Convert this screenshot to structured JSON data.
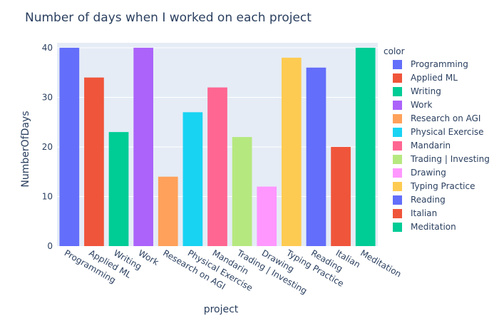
{
  "chart_data": {
    "type": "bar",
    "title": "Number of days when I worked on each project",
    "xlabel": "project",
    "ylabel": "NumberOfDays",
    "ylim": [
      0,
      41
    ],
    "yticks": [
      0,
      10,
      20,
      30,
      40
    ],
    "grid": true,
    "legend_title": "color",
    "legend_position": "right",
    "categories": [
      "Programming",
      "Applied ML",
      "Writing",
      "Work",
      "Research on AGI",
      "Physical Exercise",
      "Mandarin",
      "Trading | Investing",
      "Drawing",
      "Typing Practice",
      "Reading",
      "Italian",
      "Meditation"
    ],
    "values": [
      40,
      34,
      23,
      40,
      14,
      27,
      32,
      22,
      12,
      38,
      36,
      20,
      40
    ],
    "colors": [
      "#636efa",
      "#EF553B",
      "#00cc96",
      "#ab63fa",
      "#FFA15A",
      "#19d3f3",
      "#FF6692",
      "#B6E880",
      "#FF97FF",
      "#FECB52",
      "#636efa",
      "#EF553B",
      "#00cc96"
    ]
  },
  "style": {
    "plot_bg": "#E5ECF6",
    "grid_color": "#ffffff",
    "text_color": "#2a3f5f"
  }
}
